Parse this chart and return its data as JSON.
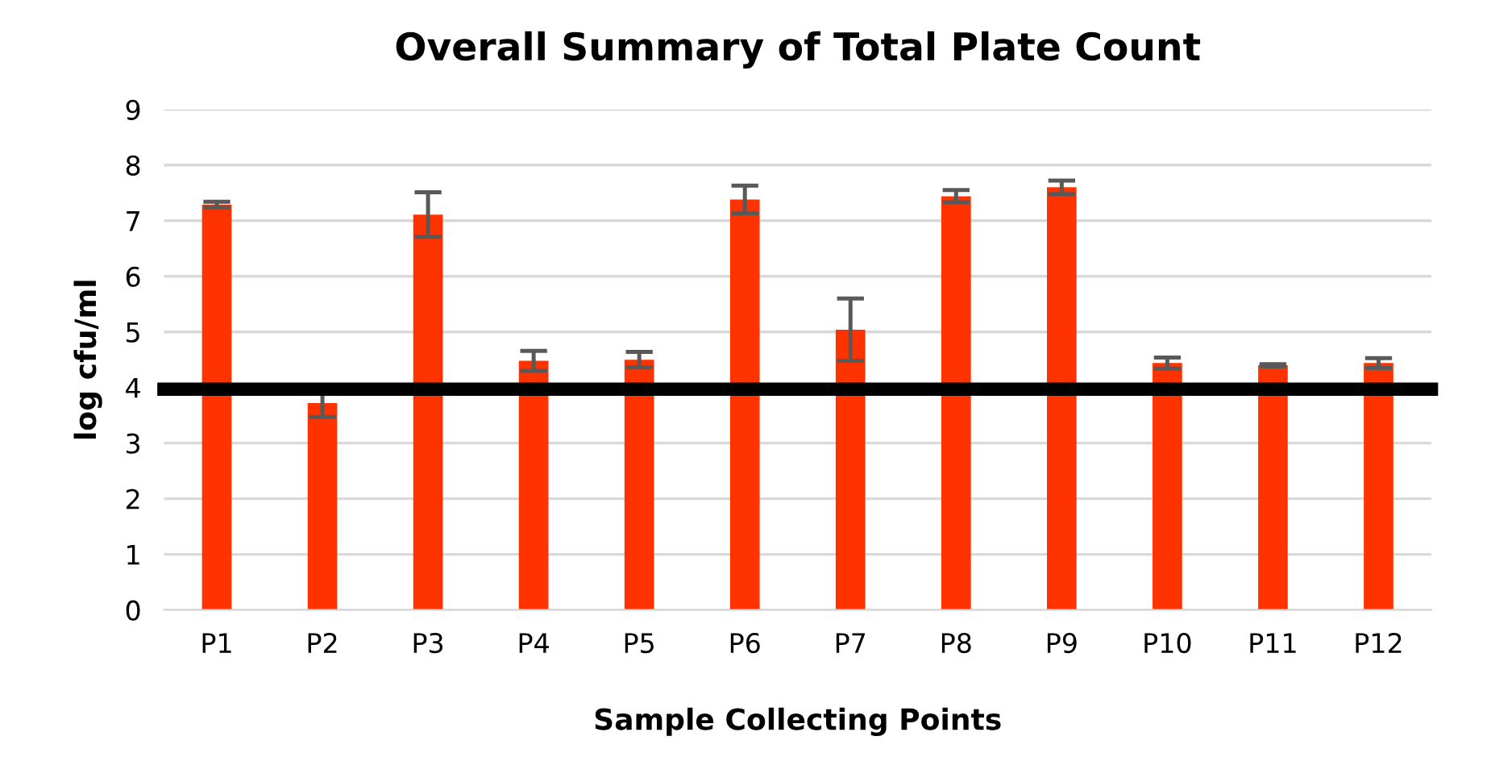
{
  "chart_data": {
    "type": "bar",
    "title": "Overall Summary of Total Plate Count",
    "xlabel": "Sample Collecting Points",
    "ylabel": "log cfu/ml",
    "categories": [
      "P1",
      "P2",
      "P3",
      "P4",
      "P5",
      "P6",
      "P7",
      "P8",
      "P9",
      "P10",
      "P11",
      "P12"
    ],
    "series": [
      {
        "color": "#ff3300",
        "values": [
          7.29,
          3.72,
          7.11,
          4.48,
          4.5,
          7.38,
          5.04,
          7.44,
          7.6,
          4.44,
          4.4,
          4.44
        ],
        "errors": [
          0.05,
          0.25,
          0.4,
          0.18,
          0.14,
          0.25,
          0.56,
          0.11,
          0.12,
          0.1,
          0.02,
          0.09
        ]
      }
    ],
    "ylim": [
      0,
      9
    ],
    "yticks": [
      0,
      1,
      2,
      3,
      4,
      5,
      6,
      7,
      8,
      9
    ],
    "grid": "y",
    "legend": false,
    "ref_lines": [
      {
        "axis": "y",
        "value": 3.97,
        "color": "#000000",
        "line_style": "solid"
      }
    ]
  }
}
